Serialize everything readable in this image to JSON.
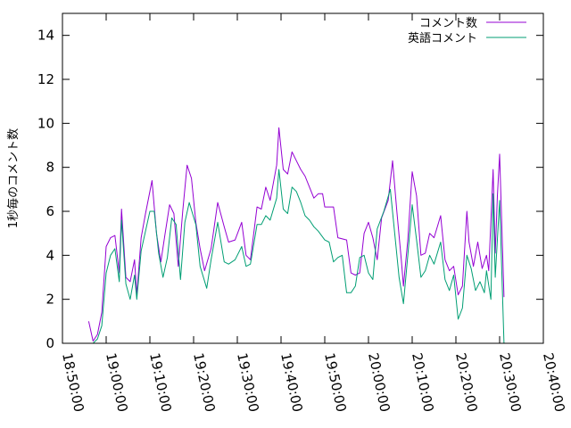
{
  "chart_data": {
    "type": "line",
    "ylabel": "1秒毎のコメント数",
    "xlim": [
      "18:50:00",
      "20:40:00"
    ],
    "ylim": [
      0,
      15
    ],
    "y_ticks": [
      0,
      2,
      4,
      6,
      8,
      10,
      12,
      14
    ],
    "x_ticks": [
      "18:50:00",
      "19:00:00",
      "19:10:00",
      "19:20:00",
      "19:30:00",
      "19:40:00",
      "19:50:00",
      "20:00:00",
      "20:10:00",
      "20:20:00",
      "20:30:00",
      "20:40:00"
    ],
    "grid": false,
    "legend_position": "top-right",
    "series": [
      {
        "name": "コメント数",
        "color": "#9400d3",
        "points": [
          [
            "18:56:00",
            1.0
          ],
          [
            "18:57:00",
            0.1
          ],
          [
            "18:58:00",
            0.4
          ],
          [
            "18:59:00",
            1.4
          ],
          [
            "19:00:00",
            4.4
          ],
          [
            "19:01:00",
            4.8
          ],
          [
            "19:02:00",
            4.9
          ],
          [
            "19:03:00",
            3.2
          ],
          [
            "19:03:30",
            6.1
          ],
          [
            "19:04:30",
            3.0
          ],
          [
            "19:05:30",
            2.8
          ],
          [
            "19:06:30",
            3.8
          ],
          [
            "19:07:00",
            2.2
          ],
          [
            "19:08:00",
            4.8
          ],
          [
            "19:09:00",
            5.9
          ],
          [
            "19:10:30",
            7.4
          ],
          [
            "19:11:30",
            5.0
          ],
          [
            "19:12:30",
            3.7
          ],
          [
            "19:13:30",
            5.0
          ],
          [
            "19:14:30",
            6.3
          ],
          [
            "19:15:30",
            5.9
          ],
          [
            "19:16:30",
            3.5
          ],
          [
            "19:17:30",
            6.0
          ],
          [
            "19:18:30",
            8.1
          ],
          [
            "19:19:30",
            7.5
          ],
          [
            "19:20:30",
            5.5
          ],
          [
            "19:21:30",
            4.3
          ],
          [
            "19:22:30",
            3.3
          ],
          [
            "19:24:00",
            4.3
          ],
          [
            "19:25:30",
            6.4
          ],
          [
            "19:27:00",
            5.3
          ],
          [
            "19:28:00",
            4.6
          ],
          [
            "19:29:30",
            4.7
          ],
          [
            "19:31:00",
            5.5
          ],
          [
            "19:32:00",
            4.0
          ],
          [
            "19:33:00",
            3.8
          ],
          [
            "19:34:30",
            6.2
          ],
          [
            "19:35:30",
            6.1
          ],
          [
            "19:36:30",
            7.1
          ],
          [
            "19:37:30",
            6.5
          ],
          [
            "19:39:00",
            8.1
          ],
          [
            "19:39:30",
            9.8
          ],
          [
            "19:40:30",
            7.9
          ],
          [
            "19:41:30",
            7.7
          ],
          [
            "19:42:30",
            8.7
          ],
          [
            "19:43:30",
            8.3
          ],
          [
            "19:44:30",
            7.9
          ],
          [
            "19:45:30",
            7.6
          ],
          [
            "19:46:30",
            7.1
          ],
          [
            "19:47:30",
            6.6
          ],
          [
            "19:48:30",
            6.8
          ],
          [
            "19:49:30",
            6.8
          ],
          [
            "19:50:00",
            6.2
          ],
          [
            "19:51:00",
            6.2
          ],
          [
            "19:52:00",
            6.2
          ],
          [
            "19:53:00",
            4.8
          ],
          [
            "19:55:00",
            4.7
          ],
          [
            "19:56:00",
            3.2
          ],
          [
            "19:57:00",
            3.1
          ],
          [
            "19:58:00",
            3.2
          ],
          [
            "19:59:00",
            5.0
          ],
          [
            "20:00:00",
            5.5
          ],
          [
            "20:01:00",
            4.8
          ],
          [
            "20:02:00",
            3.8
          ],
          [
            "20:03:00",
            5.7
          ],
          [
            "20:04:30",
            6.5
          ],
          [
            "20:05:30",
            8.3
          ],
          [
            "20:06:30",
            6.0
          ],
          [
            "20:07:30",
            3.8
          ],
          [
            "20:08:00",
            2.6
          ],
          [
            "20:09:00",
            4.7
          ],
          [
            "20:10:00",
            7.8
          ],
          [
            "20:11:00",
            6.7
          ],
          [
            "20:12:00",
            4.0
          ],
          [
            "20:13:00",
            4.1
          ],
          [
            "20:14:00",
            5.0
          ],
          [
            "20:15:00",
            4.8
          ],
          [
            "20:16:30",
            5.8
          ],
          [
            "20:17:30",
            3.8
          ],
          [
            "20:18:30",
            3.3
          ],
          [
            "20:19:30",
            3.5
          ],
          [
            "20:20:30",
            2.2
          ],
          [
            "20:21:30",
            2.6
          ],
          [
            "20:22:30",
            6.0
          ],
          [
            "20:23:00",
            4.6
          ],
          [
            "20:24:00",
            3.5
          ],
          [
            "20:25:00",
            4.6
          ],
          [
            "20:26:00",
            3.4
          ],
          [
            "20:27:00",
            4.0
          ],
          [
            "20:27:30",
            3.3
          ],
          [
            "20:28:30",
            7.9
          ],
          [
            "20:29:00",
            4.1
          ],
          [
            "20:29:30",
            6.7
          ],
          [
            "20:30:00",
            8.6
          ],
          [
            "20:31:00",
            2.1
          ]
        ]
      },
      {
        "name": "英語コメント",
        "color": "#009e73",
        "points": [
          [
            "18:57:00",
            0.0
          ],
          [
            "18:58:00",
            0.2
          ],
          [
            "18:59:00",
            0.8
          ],
          [
            "19:00:00",
            3.2
          ],
          [
            "19:01:00",
            4.0
          ],
          [
            "19:02:00",
            4.3
          ],
          [
            "19:03:00",
            2.8
          ],
          [
            "19:03:30",
            5.6
          ],
          [
            "19:04:30",
            2.7
          ],
          [
            "19:05:30",
            2.0
          ],
          [
            "19:06:30",
            3.1
          ],
          [
            "19:07:00",
            2.0
          ],
          [
            "19:08:00",
            4.2
          ],
          [
            "19:09:00",
            5.1
          ],
          [
            "19:10:00",
            6.0
          ],
          [
            "19:11:00",
            6.0
          ],
          [
            "19:12:00",
            4.1
          ],
          [
            "19:13:00",
            3.0
          ],
          [
            "19:14:00",
            3.9
          ],
          [
            "19:15:00",
            5.7
          ],
          [
            "19:16:00",
            5.4
          ],
          [
            "19:17:00",
            2.9
          ],
          [
            "19:18:00",
            5.5
          ],
          [
            "19:19:00",
            6.4
          ],
          [
            "19:20:30",
            5.4
          ],
          [
            "19:21:30",
            3.5
          ],
          [
            "19:23:00",
            2.5
          ],
          [
            "19:24:00",
            3.8
          ],
          [
            "19:25:30",
            5.5
          ],
          [
            "19:27:00",
            3.7
          ],
          [
            "19:28:00",
            3.6
          ],
          [
            "19:29:30",
            3.8
          ],
          [
            "19:31:00",
            4.4
          ],
          [
            "19:32:00",
            3.5
          ],
          [
            "19:33:00",
            3.6
          ],
          [
            "19:34:30",
            5.4
          ],
          [
            "19:35:30",
            5.4
          ],
          [
            "19:36:30",
            5.8
          ],
          [
            "19:37:30",
            5.6
          ],
          [
            "19:39:00",
            6.6
          ],
          [
            "19:39:30",
            7.9
          ],
          [
            "19:40:30",
            6.1
          ],
          [
            "19:41:30",
            5.9
          ],
          [
            "19:42:30",
            7.1
          ],
          [
            "19:43:30",
            6.9
          ],
          [
            "19:44:30",
            6.4
          ],
          [
            "19:45:30",
            5.8
          ],
          [
            "19:46:30",
            5.6
          ],
          [
            "19:47:30",
            5.3
          ],
          [
            "19:48:30",
            5.1
          ],
          [
            "19:50:00",
            4.7
          ],
          [
            "19:51:00",
            4.6
          ],
          [
            "19:52:00",
            3.7
          ],
          [
            "19:53:00",
            3.9
          ],
          [
            "19:54:00",
            4.0
          ],
          [
            "19:55:00",
            2.3
          ],
          [
            "19:56:00",
            2.3
          ],
          [
            "19:57:00",
            2.6
          ],
          [
            "19:58:00",
            3.9
          ],
          [
            "19:59:00",
            4.0
          ],
          [
            "20:00:00",
            3.2
          ],
          [
            "20:01:00",
            2.9
          ],
          [
            "20:02:00",
            5.2
          ],
          [
            "20:03:30",
            6.0
          ],
          [
            "20:05:00",
            7.0
          ],
          [
            "20:06:00",
            5.0
          ],
          [
            "20:07:00",
            3.0
          ],
          [
            "20:08:00",
            1.8
          ],
          [
            "20:09:00",
            4.0
          ],
          [
            "20:10:00",
            6.3
          ],
          [
            "20:11:00",
            4.7
          ],
          [
            "20:12:00",
            3.0
          ],
          [
            "20:13:00",
            3.3
          ],
          [
            "20:14:00",
            4.0
          ],
          [
            "20:15:00",
            3.6
          ],
          [
            "20:16:30",
            4.6
          ],
          [
            "20:17:30",
            2.9
          ],
          [
            "20:18:30",
            2.4
          ],
          [
            "20:19:30",
            3.1
          ],
          [
            "20:20:30",
            1.1
          ],
          [
            "20:21:30",
            1.6
          ],
          [
            "20:22:30",
            4.0
          ],
          [
            "20:23:30",
            3.4
          ],
          [
            "20:24:30",
            2.4
          ],
          [
            "20:25:30",
            2.8
          ],
          [
            "20:26:30",
            2.3
          ],
          [
            "20:27:00",
            3.3
          ],
          [
            "20:28:00",
            2.0
          ],
          [
            "20:28:30",
            6.8
          ],
          [
            "20:29:00",
            3.0
          ],
          [
            "20:30:00",
            6.5
          ],
          [
            "20:31:00",
            0.0
          ]
        ]
      }
    ]
  }
}
